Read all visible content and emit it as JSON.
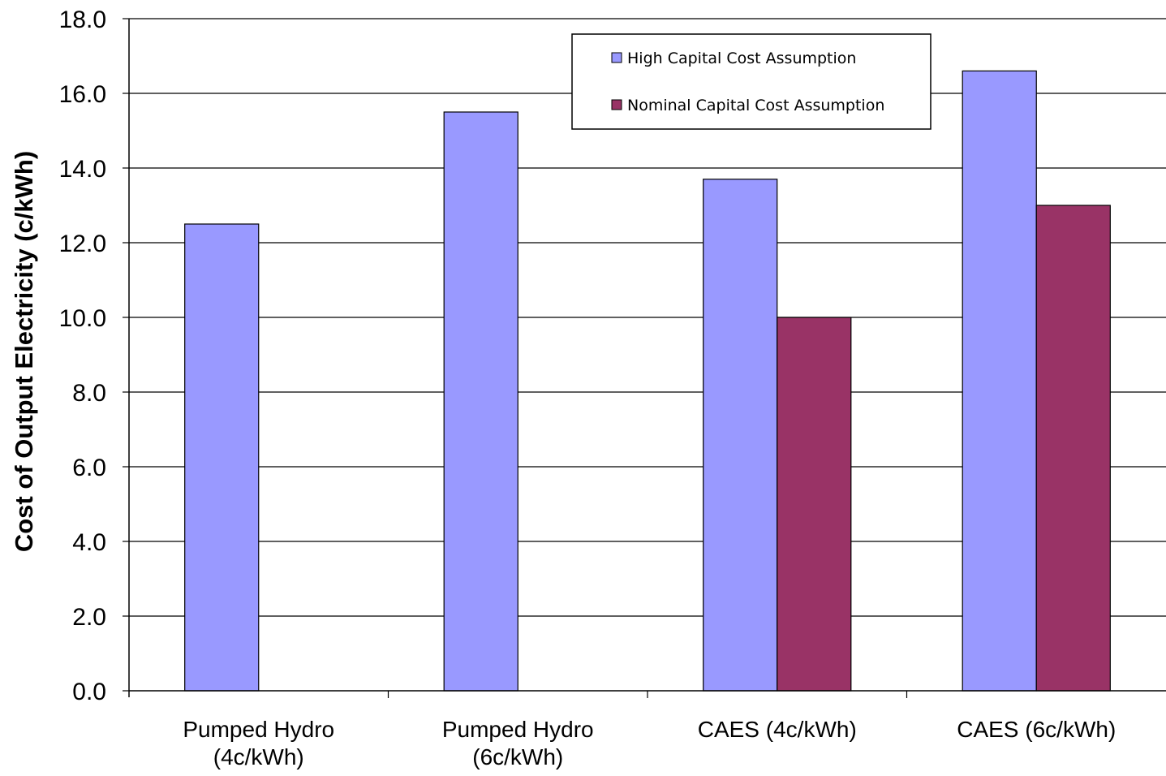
{
  "chart_data": {
    "type": "bar",
    "title": "",
    "xlabel": "",
    "ylabel": "Cost of Output Electricity (c/kWh)",
    "ylim": [
      0,
      18
    ],
    "ytick_step": 2,
    "ytick_labels": [
      "0.0",
      "2.0",
      "4.0",
      "6.0",
      "8.0",
      "10.0",
      "12.0",
      "14.0",
      "16.0",
      "18.0"
    ],
    "categories": [
      [
        "Pumped Hydro",
        "(4c/kWh)"
      ],
      [
        "Pumped Hydro",
        "(6c/kWh)"
      ],
      [
        "CAES (4c/kWh)"
      ],
      [
        "CAES (6c/kWh)"
      ]
    ],
    "series": [
      {
        "name": "High Capital Cost Assumption",
        "color": "#9999ff",
        "values": [
          12.5,
          15.5,
          13.7,
          16.6
        ]
      },
      {
        "name": "Nominal Capital Cost Assumption",
        "color": "#993366",
        "values": [
          null,
          null,
          10.0,
          13.0
        ]
      }
    ],
    "grid": true,
    "legend_position": "top-right"
  }
}
